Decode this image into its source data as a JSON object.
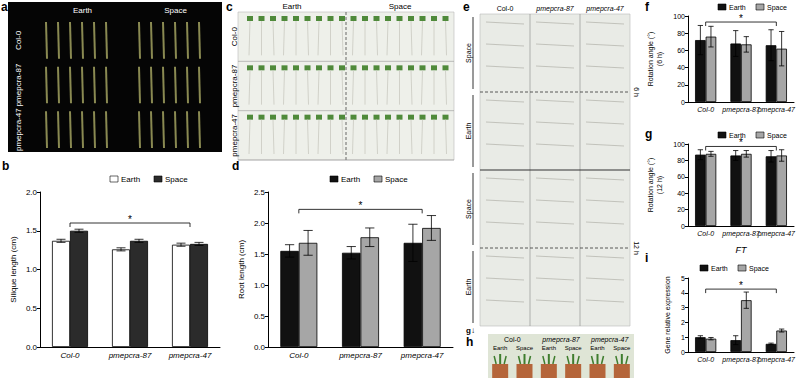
{
  "panels": [
    {
      "panel": "a",
      "columns": [
        "Earth",
        "Space"
      ],
      "rows": [
        "Col-0",
        "pmepcra-87",
        "pmepcra-47"
      ]
    },
    {
      "panel": "c",
      "columns": [
        "Earth",
        "Space"
      ],
      "rows": [
        "Col-0",
        "pmepcra-87",
        "pmepcra-47"
      ]
    },
    {
      "panel": "e",
      "columns": [
        "Col-0",
        "pmepcra-87",
        "pmepcra-47"
      ],
      "rows": [
        "Space",
        "Earth",
        "Space",
        "Earth"
      ],
      "times": [
        "6 h",
        "12 h"
      ],
      "gravity": "g↓"
    },
    {
      "panel": "h",
      "columns": [
        "Col-0",
        "pmepcra-87",
        "pmepcra-47"
      ],
      "rows": [
        "Earth",
        "Space"
      ]
    }
  ],
  "chart_data": [
    {
      "panel": "b",
      "type": "bar",
      "y_label": "Silique length (cm)",
      "categories": [
        "Col-0",
        "pmepcra-87",
        "pmepcra-47"
      ],
      "ylim": [
        0,
        2
      ],
      "yticks": [
        {
          "value": 0,
          "label": "0.0"
        },
        0.5,
        {
          "value": 1,
          "label": "1.0"
        },
        1.5,
        {
          "value": 2,
          "label": "2.0"
        }
      ],
      "series": [
        {
          "name": "Earth",
          "color": "#ffffff",
          "values": [
            1.37,
            1.26,
            1.32
          ],
          "errors": [
            0.02,
            0.02,
            0.02
          ]
        },
        {
          "name": "Space",
          "color": "#2b2b2b",
          "values": [
            1.5,
            1.37,
            1.33
          ],
          "errors": [
            0.02,
            0.02,
            0.02
          ]
        }
      ],
      "annotation": "*"
    },
    {
      "panel": "d",
      "type": "bar",
      "y_label": "Root length (cm)",
      "categories": [
        "Col-0",
        "pmepcra-87",
        "pmepcra-47"
      ],
      "ylim": [
        0,
        2.5
      ],
      "yticks": [
        {
          "value": 0,
          "label": "0.0"
        },
        0.5,
        {
          "value": 1,
          "label": "1.0"
        },
        1.5,
        {
          "value": 2,
          "label": "2.0"
        },
        2.5
      ],
      "series": [
        {
          "name": "Earth",
          "color": "#111111",
          "values": [
            1.55,
            1.52,
            1.68
          ],
          "errors": [
            0.1,
            0.1,
            0.3
          ]
        },
        {
          "name": "Space",
          "color": "#a6a6a6",
          "values": [
            1.68,
            1.77,
            1.92
          ],
          "errors": [
            0.2,
            0.15,
            0.2
          ]
        }
      ],
      "annotation": "*"
    },
    {
      "panel": "f",
      "type": "bar",
      "y_label": "Rotation angle (°)\n(6 h)",
      "categories": [
        "Col-0",
        "pmepcra-87",
        "pmepcra-47"
      ],
      "ylim": [
        0,
        100
      ],
      "yticks": [
        0,
        20,
        40,
        60,
        80,
        100
      ],
      "series": [
        {
          "name": "Earth",
          "color": "#111111",
          "values": [
            72,
            68,
            66
          ],
          "errors": [
            17,
            15,
            18
          ]
        },
        {
          "name": "Space",
          "color": "#a6a6a6",
          "values": [
            76,
            67,
            62
          ],
          "errors": [
            12,
            9,
            20
          ]
        }
      ],
      "annotation": "*"
    },
    {
      "panel": "g",
      "type": "bar",
      "y_label": "Rotation angle (°)\n(12 h)",
      "categories": [
        "Col-0",
        "pmepcra-87",
        "pmepcra-47"
      ],
      "ylim": [
        0,
        100
      ],
      "yticks": [
        0,
        20,
        40,
        60,
        80,
        100
      ],
      "series": [
        {
          "name": "Earth",
          "color": "#111111",
          "values": [
            87,
            86,
            85
          ],
          "errors": [
            6,
            6,
            7
          ]
        },
        {
          "name": "Space",
          "color": "#a6a6a6",
          "values": [
            88,
            88,
            86
          ],
          "errors": [
            3,
            4,
            7
          ]
        }
      ],
      "annotation": "*"
    },
    {
      "panel": "i",
      "type": "bar",
      "title": "FT",
      "y_label": "Gene relative expression",
      "categories": [
        "Col-0",
        "pmepcra-87",
        "pmepcra-47"
      ],
      "ylim": [
        0,
        5
      ],
      "yticks": [
        0,
        1,
        2,
        3,
        4,
        5
      ],
      "series": [
        {
          "name": "Earth",
          "color": "#111111",
          "values": [
            1.0,
            0.8,
            0.55
          ],
          "errors": [
            0.1,
            0.3,
            0.05
          ]
        },
        {
          "name": "Space",
          "color": "#a6a6a6",
          "values": [
            0.9,
            3.5,
            1.45
          ],
          "errors": [
            0.08,
            0.55,
            0.1
          ]
        }
      ],
      "annotation": "*"
    }
  ]
}
